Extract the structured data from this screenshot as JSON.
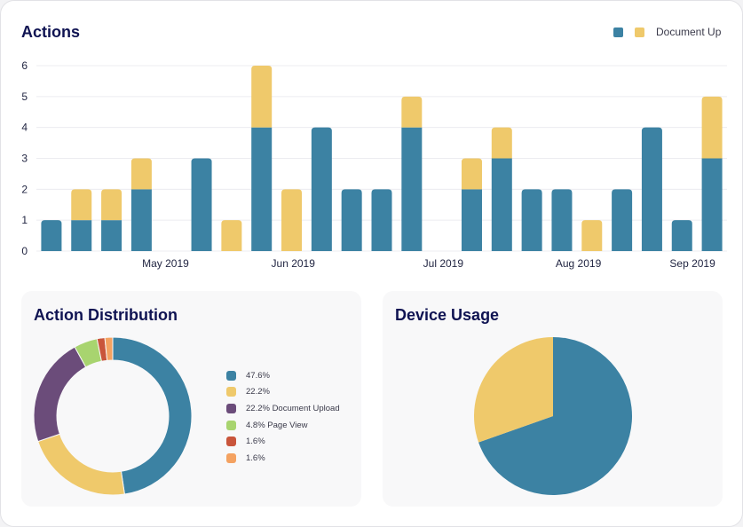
{
  "actions_chart": {
    "title": "Actions",
    "legend": {
      "entries": [
        {
          "label": ""
        },
        {
          "label": "Document Up"
        }
      ]
    }
  },
  "distribution": {
    "title": "Action Distribution",
    "legend": [
      {
        "label": "47.6%"
      },
      {
        "label": "22.2%"
      },
      {
        "label": "22.2% Document Upload"
      },
      {
        "label": "4.8% Page View"
      },
      {
        "label": "1.6%"
      },
      {
        "label": "1.6%"
      }
    ]
  },
  "device": {
    "title": "Device Usage"
  },
  "colors": {
    "teal": "#3c82a3",
    "yellow": "#efc96b",
    "purple": "#6b4c7a",
    "green": "#a8d46f",
    "red": "#c9553b",
    "orange": "#f4a261",
    "title": "#0f1352"
  },
  "chart_data": [
    {
      "type": "bar",
      "stacked": true,
      "title": "Actions",
      "ylim": [
        0,
        6
      ],
      "yticks": [
        0,
        1,
        2,
        3,
        4,
        5,
        6
      ],
      "xtick_labels": [
        "May 2019",
        "Jun 2019",
        "Jul 2019",
        "Aug 2019",
        "Sep 2019"
      ],
      "series": [
        {
          "name": "",
          "color": "#3c82a3",
          "values": [
            1,
            1,
            1,
            2,
            0,
            3,
            0,
            4,
            0,
            4,
            2,
            2,
            4,
            0,
            2,
            3,
            2,
            2,
            0,
            2,
            4,
            1,
            3
          ]
        },
        {
          "name": "Document Up",
          "color": "#efc96b",
          "values": [
            0,
            1,
            1,
            1,
            0,
            0,
            1,
            2,
            0,
            0,
            0,
            0,
            1,
            0,
            1,
            1,
            0,
            0,
            1,
            0,
            0,
            0,
            2
          ]
        }
      ],
      "overlay": {
        "index": 8,
        "value": 2,
        "color": "#efc96b"
      },
      "grid": true,
      "legend": "top-right"
    },
    {
      "type": "pie",
      "donut": true,
      "title": "Action Distribution",
      "values": [
        47.6,
        22.2,
        22.2,
        4.8,
        1.6,
        1.6
      ],
      "labels": [
        "47.6%",
        "22.2%",
        "22.2% Document Upload",
        "4.8% Page View",
        "1.6%",
        "1.6%"
      ],
      "colors": [
        "#3c82a3",
        "#efc96b",
        "#6b4c7a",
        "#a8d46f",
        "#c9553b",
        "#f4a261"
      ],
      "legend": "right"
    },
    {
      "type": "pie",
      "title": "Device Usage",
      "values": [
        69.6,
        30.4
      ],
      "colors": [
        "#3c82a3",
        "#efc96b"
      ]
    }
  ]
}
